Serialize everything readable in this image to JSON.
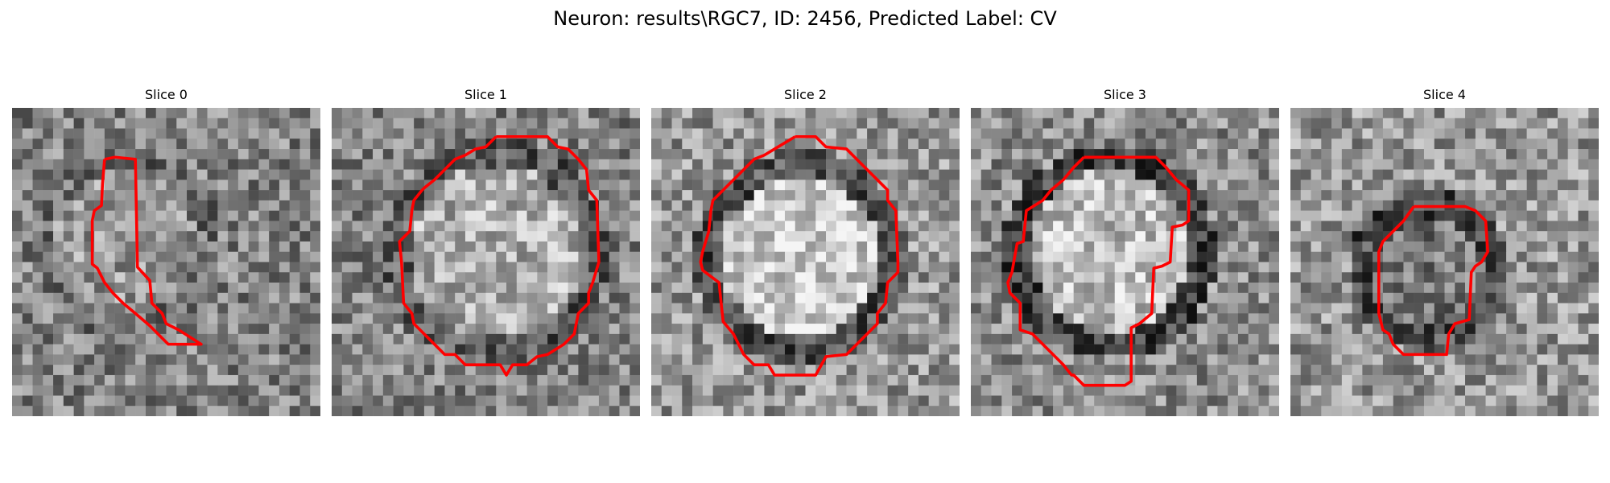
{
  "figure": {
    "title": "Neuron: results\\RGC7, ID: 2456, Predicted Label: CV"
  },
  "outline_color": "#ff0000",
  "slices": [
    {
      "title": "Slice 0"
    },
    {
      "title": "Slice 1"
    },
    {
      "title": "Slice 2"
    },
    {
      "title": "Slice 3"
    },
    {
      "title": "Slice 4"
    }
  ]
}
